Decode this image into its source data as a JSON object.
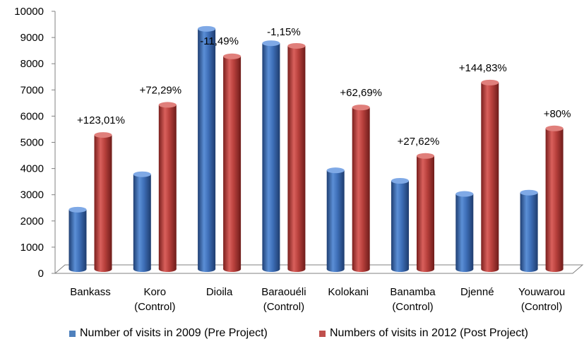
{
  "chart_data": {
    "type": "bar",
    "categories": [
      [
        "Bankass"
      ],
      [
        "Koro",
        "(Control)"
      ],
      [
        "Dioila"
      ],
      [
        "Baraouéli",
        "(Control)"
      ],
      [
        "Kolokani"
      ],
      [
        "Banamba",
        "(Control)"
      ],
      [
        "Djenné"
      ],
      [
        "Youwarou",
        "(Control)"
      ]
    ],
    "series": [
      {
        "name": "Number of visits in 2009 (Pre Project)",
        "values": [
          2350,
          3700,
          9250,
          8700,
          3850,
          3450,
          2950,
          3000
        ],
        "color": "#4f81bd"
      },
      {
        "name": "Numbers of visits in 2012 (Post Project)",
        "values": [
          5200,
          6350,
          8200,
          8600,
          6250,
          4400,
          7200,
          5450
        ],
        "color": "#c0504d"
      }
    ],
    "annotations": [
      "+123,01%",
      "+72,29%",
      "-11,49%",
      "-1,15%",
      "+62,69%",
      "+27,62%",
      "+144,83%",
      "+80%"
    ],
    "yticks": [
      "0",
      "1000",
      "2000",
      "3000",
      "4000",
      "5000",
      "6000",
      "7000",
      "8000",
      "9000",
      "10000"
    ],
    "ylim": [
      0,
      10000
    ],
    "grid": false,
    "style": "3d-cylinder",
    "legend_position": "bottom"
  }
}
